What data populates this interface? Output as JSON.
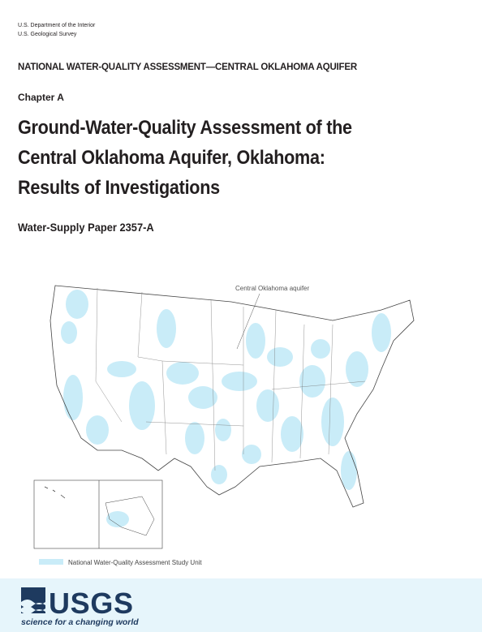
{
  "header": {
    "department": "U.S. Department of the Interior",
    "agency": "U.S. Geological Survey",
    "program": "NATIONAL WATER-QUALITY ASSESSMENT—CENTRAL OKLAHOMA AQUIFER",
    "chapter": "Chapter A"
  },
  "title": {
    "lines": [
      "Ground-Water-Quality Assessment of the",
      "Central Oklahoma Aquifer, Oklahoma:",
      "Results of Investigations"
    ]
  },
  "series": "Water-Supply Paper 2357-A",
  "map": {
    "callout": "Central Oklahoma aquifer",
    "legend": "National Water-Quality Assessment Study Unit"
  },
  "footer": {
    "logo": "USGS",
    "tagline": "science for a changing world"
  }
}
